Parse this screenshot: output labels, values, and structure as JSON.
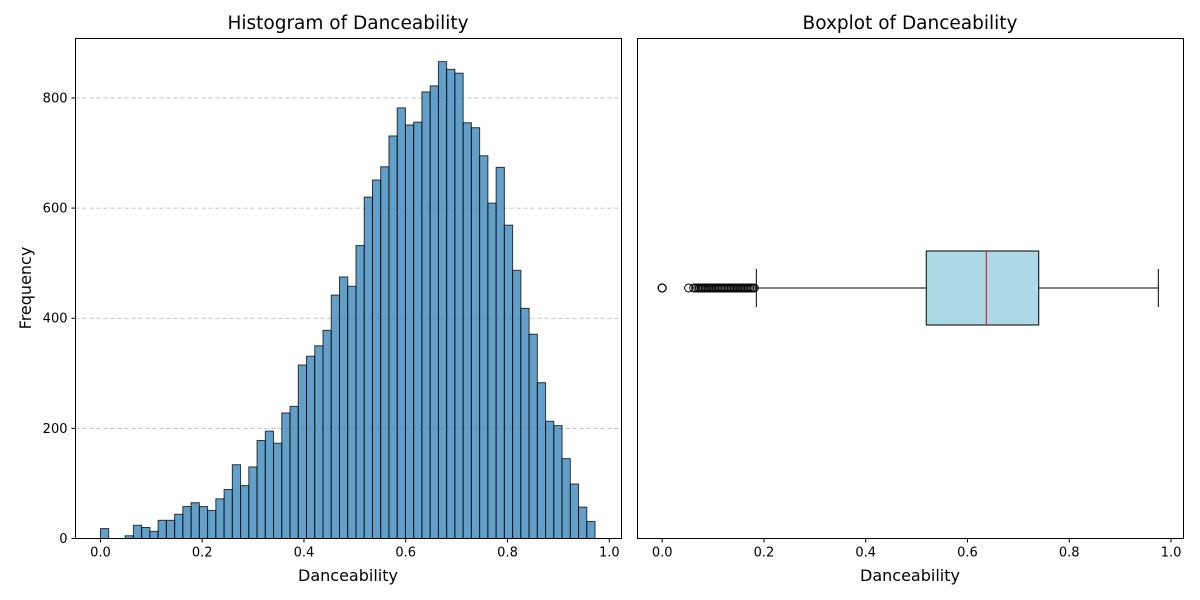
{
  "chart_data": [
    {
      "type": "bar",
      "title": "Histogram of Danceability",
      "xlabel": "Danceability",
      "ylabel": "Frequency",
      "xlim": [
        -0.049,
        1.024
      ],
      "ylim": [
        0,
        908
      ],
      "xticks": [
        "0.0",
        "0.2",
        "0.4",
        "0.6",
        "0.8",
        "1.0"
      ],
      "yticks": [
        "0",
        "200",
        "400",
        "600",
        "800"
      ],
      "grid": "y-dashed",
      "bar_color": "#1f77b4",
      "bin_edges": [
        0.0,
        0.0162,
        0.0324,
        0.0486,
        0.0648,
        0.081,
        0.0972,
        0.1134,
        0.1296,
        0.1458,
        0.162,
        0.1782,
        0.1944,
        0.2106,
        0.2268,
        0.243,
        0.2592,
        0.2754,
        0.2916,
        0.3078,
        0.324,
        0.3402,
        0.3564,
        0.3726,
        0.3888,
        0.405,
        0.4212,
        0.4374,
        0.4536,
        0.4698,
        0.486,
        0.5022,
        0.5184,
        0.5346,
        0.5508,
        0.567,
        0.5832,
        0.5994,
        0.6156,
        0.6318,
        0.648,
        0.6642,
        0.6804,
        0.6966,
        0.7128,
        0.729,
        0.7452,
        0.7614,
        0.7776,
        0.7938,
        0.81,
        0.8262,
        0.8424,
        0.8586,
        0.8748,
        0.891,
        0.9072,
        0.9234,
        0.9396,
        0.9558,
        0.972
      ],
      "values": [
        18,
        0,
        0,
        5,
        24,
        20,
        13,
        33,
        33,
        44,
        58,
        65,
        58,
        51,
        72,
        89,
        134,
        96,
        130,
        178,
        195,
        173,
        228,
        240,
        315,
        331,
        350,
        378,
        442,
        475,
        458,
        532,
        620,
        651,
        675,
        731,
        782,
        751,
        756,
        811,
        822,
        866,
        852,
        845,
        755,
        746,
        695,
        609,
        674,
        569,
        487,
        418,
        371,
        283,
        213,
        205,
        145,
        99,
        57,
        31
      ]
    },
    {
      "type": "boxplot",
      "title": "Boxplot of Danceability",
      "xlabel": "Danceability",
      "xlim": [
        -0.0485,
        1.0245
      ],
      "xticks": [
        "0.0",
        "0.2",
        "0.4",
        "0.6",
        "0.8",
        "1.0"
      ],
      "orientation": "horizontal",
      "box_color": "#add8e6",
      "median_color": "#d62728",
      "q1": 0.519,
      "median": 0.637,
      "q3": 0.74,
      "whisker_low": 0.185,
      "whisker_high": 0.975,
      "outliers": [
        0.0,
        0.0,
        0.0,
        0.0,
        0.052,
        0.062,
        0.066,
        0.07,
        0.073,
        0.076,
        0.079,
        0.082,
        0.085,
        0.088,
        0.091,
        0.094,
        0.097,
        0.1,
        0.103,
        0.106,
        0.109,
        0.112,
        0.115,
        0.118,
        0.121,
        0.124,
        0.127,
        0.13,
        0.133,
        0.136,
        0.139,
        0.142,
        0.145,
        0.148,
        0.151,
        0.154,
        0.157,
        0.16,
        0.163,
        0.166,
        0.169,
        0.172,
        0.175,
        0.178,
        0.181
      ]
    }
  ]
}
